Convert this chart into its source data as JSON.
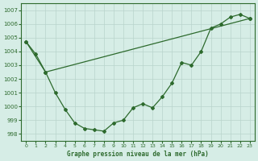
{
  "title": "Graphe pression niveau de la mer (hPa)",
  "line1_x": [
    0,
    1,
    2,
    3,
    4,
    5,
    6,
    7,
    8,
    9,
    10,
    11,
    12,
    13,
    14,
    15,
    16,
    17,
    18,
    19,
    20,
    21,
    22,
    23
  ],
  "line1_y": [
    1004.7,
    1003.8,
    1002.5,
    1001.0,
    999.8,
    998.8,
    998.4,
    998.3,
    998.2,
    998.8,
    999.0,
    999.9,
    1000.2,
    999.9,
    1000.7,
    1001.7,
    1003.2,
    1003.0,
    1004.0,
    1005.7,
    1006.0,
    1006.5,
    1006.7,
    1006.4
  ],
  "line2_x": [
    0,
    2,
    23
  ],
  "line2_y": [
    1004.7,
    1002.5,
    1006.4
  ],
  "line_color": "#2d6a2d",
  "bg_color": "#d6ede6",
  "grid_color": "#b8d4cc",
  "ylim_min": 997.5,
  "ylim_max": 1007.5,
  "xlim_min": -0.5,
  "xlim_max": 23.5,
  "yticks": [
    998,
    999,
    1000,
    1001,
    1002,
    1003,
    1004,
    1005,
    1006,
    1007
  ],
  "xticks": [
    0,
    1,
    2,
    3,
    4,
    5,
    6,
    7,
    8,
    9,
    10,
    11,
    12,
    13,
    14,
    15,
    16,
    17,
    18,
    19,
    20,
    21,
    22,
    23
  ]
}
